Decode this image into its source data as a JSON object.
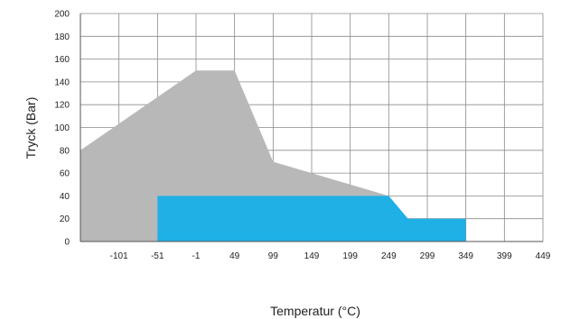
{
  "chart_data": {
    "type": "area",
    "xlabel": "Temperatur (°C)",
    "ylabel": "Tryck (Bar)",
    "xlim": [
      -151,
      449
    ],
    "ylim": [
      0,
      200
    ],
    "x_ticks": [
      -101,
      -51,
      -1,
      49,
      99,
      149,
      199,
      249,
      299,
      349,
      399,
      449
    ],
    "y_ticks": [
      0,
      20,
      40,
      60,
      80,
      100,
      120,
      140,
      160,
      180,
      200
    ],
    "x_grid_step": 50,
    "y_grid_step": 20,
    "grid": true,
    "legend": "none",
    "series": [
      {
        "color": "#b8b8b8",
        "x": [
          -151,
          -1,
          49,
          99,
          249
        ],
        "y": [
          80,
          150,
          150,
          70,
          40
        ]
      },
      {
        "color": "#1fb0e6",
        "x": [
          -51,
          249,
          274,
          349
        ],
        "y": [
          40,
          40,
          20,
          20
        ]
      }
    ]
  }
}
